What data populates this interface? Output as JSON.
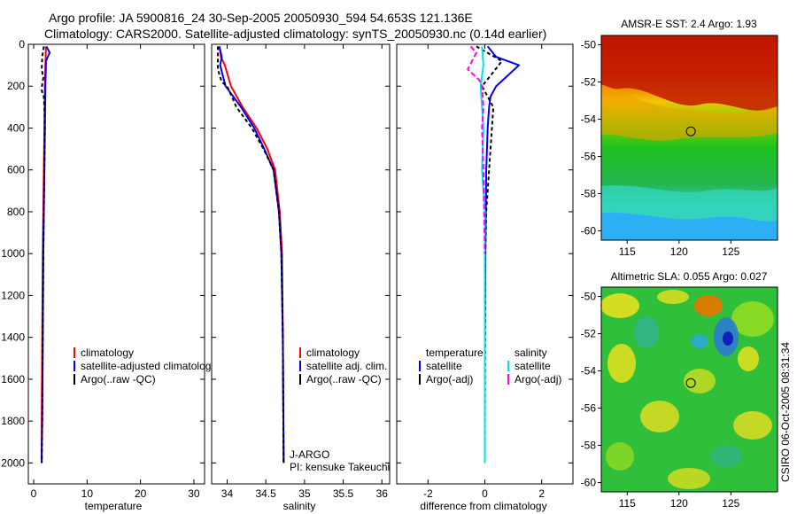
{
  "header": {
    "line1": "Argo profile: JA 5900816_24 30-Sep-2005 20050930_594 54.653S 121.136E",
    "line2": "Climatology: CARS2000. Satellite-adjusted climatology: synTS_20050930.nc (0.14d earlier)"
  },
  "chart_data": [
    {
      "id": "temperature",
      "type": "line",
      "xlabel": "temperature",
      "ylabel": "",
      "xlim": [
        -1,
        32
      ],
      "ylim": [
        2100,
        0
      ],
      "xticks": [
        0,
        10,
        20,
        30
      ],
      "yticks": [
        0,
        200,
        400,
        600,
        800,
        1000,
        1200,
        1400,
        1600,
        1800,
        2000
      ],
      "series": [
        {
          "name": "climatology",
          "color": "#ff0000",
          "dash": "",
          "x": [
            2.3,
            2.2,
            2.1,
            2.0,
            1.9,
            1.8,
            1.7,
            1.6,
            1.5,
            1.5
          ],
          "y": [
            10,
            100,
            200,
            400,
            600,
            800,
            1000,
            1400,
            1800,
            2000
          ]
        },
        {
          "name": "satellite-adjusted climatology",
          "color": "#0000ff",
          "dash": "",
          "x": [
            2.4,
            3.0,
            2.3,
            2.2,
            2.1,
            2.0,
            1.9,
            1.8,
            1.7,
            1.6,
            1.5,
            1.5
          ],
          "y": [
            10,
            40,
            80,
            200,
            400,
            600,
            800,
            1000,
            1400,
            1800,
            1950,
            2000
          ]
        },
        {
          "name": "Argo(..raw -QC)",
          "color": "#000000",
          "dash": "4,3",
          "x": [
            1.9,
            1.6,
            1.5,
            1.8,
            1.6,
            1.5,
            1.9,
            2.0,
            2.1,
            2.0,
            1.9,
            1.8,
            1.7,
            1.6,
            1.5
          ],
          "y": [
            10,
            60,
            120,
            160,
            190,
            220,
            250,
            300,
            400,
            600,
            800,
            1000,
            1400,
            1800,
            2000
          ]
        }
      ],
      "legend": {
        "position": "lower-right",
        "entries": [
          {
            "label": "climatology",
            "color": "#ff0000"
          },
          {
            "label": "satellite-adjusted climatology",
            "color": "#0000ff"
          },
          {
            "label": "Argo(..raw -QC)",
            "color": "#000000"
          }
        ]
      }
    },
    {
      "id": "salinity",
      "type": "line",
      "xlabel": "salinity",
      "ylabel": "",
      "xlim": [
        33.8,
        36.1
      ],
      "ylim": [
        2100,
        0
      ],
      "xticks": [
        34,
        34.5,
        35,
        35.5,
        36
      ],
      "yticks": [
        0,
        200,
        400,
        600,
        800,
        1000,
        1200,
        1400,
        1600,
        1800,
        2000
      ],
      "series": [
        {
          "name": "climatology",
          "color": "#ff0000",
          "dash": "",
          "x": [
            33.9,
            33.92,
            33.97,
            34.05,
            34.2,
            34.38,
            34.52,
            34.62,
            34.68,
            34.71,
            34.72,
            34.73
          ],
          "y": [
            10,
            60,
            100,
            200,
            300,
            400,
            500,
            600,
            800,
            1000,
            1400,
            2000
          ]
        },
        {
          "name": "satellite adj. clim.",
          "color": "#0000ff",
          "dash": "",
          "x": [
            33.9,
            33.93,
            33.91,
            33.98,
            34.18,
            34.35,
            34.48,
            34.6,
            34.67,
            34.7,
            34.72,
            34.73
          ],
          "y": [
            10,
            60,
            100,
            200,
            300,
            400,
            500,
            600,
            800,
            1000,
            1400,
            2000
          ]
        },
        {
          "name": "Argo(..raw -QC)",
          "color": "#000000",
          "dash": "4,3",
          "x": [
            33.88,
            33.88,
            33.93,
            34.0,
            34.12,
            34.32,
            34.47,
            34.6,
            34.67,
            34.7,
            34.72,
            34.73
          ],
          "y": [
            10,
            120,
            180,
            200,
            300,
            400,
            500,
            600,
            800,
            1000,
            1400,
            2000
          ]
        }
      ],
      "legend": {
        "position": "lower-right",
        "entries": [
          {
            "label": "climatology",
            "color": "#ff0000"
          },
          {
            "label": "satellite adj. clim.",
            "color": "#0000ff"
          },
          {
            "label": "Argo(..raw -QC)",
            "color": "#000000"
          }
        ]
      },
      "annotations": [
        "J-ARGO",
        "PI: kensuke Takeuchi"
      ]
    },
    {
      "id": "difference",
      "type": "line",
      "xlabel": "difference from climatology",
      "ylabel": "",
      "xlim": [
        -3.1,
        3.1
      ],
      "ylim": [
        2100,
        0
      ],
      "xticks": [
        -2,
        0,
        2
      ],
      "yticks": [
        0,
        200,
        400,
        600,
        800,
        1000,
        1200,
        1400,
        1600,
        1800,
        2000
      ],
      "series": [
        {
          "name": "temperature satellite",
          "color": "#0000ff",
          "dash": "",
          "x": [
            0.1,
            0.4,
            1.2,
            0.8,
            0.4,
            0.2,
            0.15,
            0.1,
            0.05,
            0.02,
            0.0,
            0.0
          ],
          "y": [
            10,
            60,
            100,
            150,
            200,
            250,
            300,
            400,
            600,
            1000,
            1400,
            2000
          ]
        },
        {
          "name": "temperature Argo(-adj)",
          "color": "#000000",
          "dash": "4,3",
          "x": [
            -0.3,
            0.6,
            0.2,
            -0.1,
            0.1,
            0.3,
            0.25,
            0.15,
            0.05,
            0.02,
            0.0
          ],
          "y": [
            10,
            80,
            150,
            200,
            250,
            300,
            400,
            600,
            800,
            1000,
            2000
          ]
        },
        {
          "name": "salinity satellite",
          "color": "#00e5e5",
          "dash": "",
          "x": [
            -0.1,
            -0.05,
            -0.15,
            -0.1,
            -0.05,
            -0.1,
            0.0,
            0.0
          ],
          "y": [
            10,
            100,
            200,
            300,
            400,
            600,
            800,
            2000
          ]
        },
        {
          "name": "salinity Argo(-adj)",
          "color": "#ff00ff",
          "dash": "6,3",
          "x": [
            -0.5,
            -0.3,
            -0.6,
            -0.2,
            -0.1,
            -0.05,
            -0.1,
            -0.05,
            0.0
          ],
          "y": [
            10,
            40,
            120,
            170,
            200,
            300,
            400,
            600,
            1000
          ]
        }
      ],
      "legend": {
        "position": "lower-center",
        "columns": [
          {
            "title": "temperature",
            "entries": [
              {
                "label": "satellite",
                "color": "#0000ff"
              },
              {
                "label": "Argo(-adj)",
                "color": "#000000"
              }
            ]
          },
          {
            "title": "salinity",
            "entries": [
              {
                "label": "satellite",
                "color": "#00e5e5"
              },
              {
                "label": "Argo(-adj)",
                "color": "#ff00ff"
              }
            ]
          }
        ]
      }
    },
    {
      "id": "sst-map",
      "type": "heatmap",
      "title": "AMSR-E SST: 2.4 Argo: 1.93",
      "xlim": [
        112.5,
        129.5
      ],
      "ylim": [
        -60.5,
        -49.5
      ],
      "xticks": [
        115,
        120,
        125
      ],
      "yticks": [
        -50,
        -52,
        -54,
        -56,
        -58,
        -60
      ],
      "marker": {
        "lon": 121.136,
        "lat": -54.653
      }
    },
    {
      "id": "sla-map",
      "type": "heatmap",
      "title": "Altimetric SLA: 0.055 Argo: 0.027",
      "xlim": [
        112.5,
        129.5
      ],
      "ylim": [
        -60.5,
        -49.5
      ],
      "xticks": [
        115,
        120,
        125
      ],
      "yticks": [
        -50,
        -52,
        -54,
        -56,
        -58,
        -60
      ],
      "marker": {
        "lon": 121.136,
        "lat": -54.653
      }
    }
  ],
  "footer": {
    "stamp": "CSIRO 06-Oct-2005 08:31:34"
  }
}
